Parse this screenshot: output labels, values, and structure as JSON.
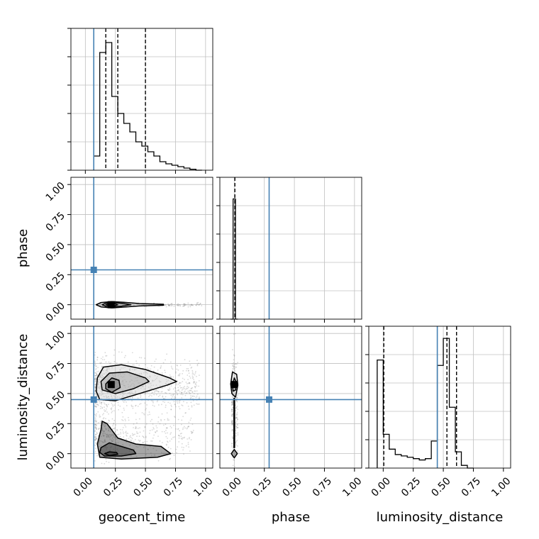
{
  "chart_data": {
    "type": "corner",
    "parameters": [
      "geocent_time",
      "phase",
      "luminosity_distance"
    ],
    "axis_labels": {
      "x": [
        "geocent_time",
        "phase",
        "luminosity_distance"
      ],
      "y": [
        "phase",
        "luminosity_distance"
      ]
    },
    "ticks": [
      0.0,
      0.25,
      0.5,
      0.75,
      1.0
    ],
    "tick_labels": [
      "0.00",
      "0.25",
      "0.50",
      "0.75",
      "1.00"
    ],
    "axis_range": [
      -0.12,
      1.06
    ],
    "grid": true,
    "colors": {
      "truth": "#4682b4",
      "hist": "#000000",
      "quantile": "#000000",
      "grid": "#c0c0c0"
    },
    "truths": {
      "geocent_time": 0.07,
      "phase": 0.29,
      "luminosity_distance": 0.45
    },
    "quantiles": {
      "geocent_time": [
        0.17,
        0.27,
        0.5
      ],
      "phase": [
        0.005
      ],
      "luminosity_distance": [
        0.005,
        0.53,
        0.61
      ]
    },
    "histograms": {
      "geocent_time": {
        "edges": [
          0.07,
          0.12,
          0.17,
          0.22,
          0.27,
          0.32,
          0.37,
          0.42,
          0.47,
          0.52,
          0.57,
          0.62,
          0.67,
          0.72,
          0.77,
          0.82,
          0.87,
          0.92,
          0.97
        ],
        "counts": [
          0.1,
          0.83,
          0.9,
          0.52,
          0.4,
          0.33,
          0.27,
          0.2,
          0.17,
          0.13,
          0.1,
          0.06,
          0.045,
          0.035,
          0.025,
          0.015,
          0.007,
          0.0
        ],
        "ymax": 1.0
      },
      "phase": {
        "edges": [
          -0.03,
          -0.01,
          0.01,
          0.03
        ],
        "counts": [
          0.0,
          1.0,
          0.0
        ],
        "ymax": 1.18
      },
      "luminosity_distance": {
        "edges": [
          -0.05,
          0.0,
          0.05,
          0.1,
          0.15,
          0.2,
          0.25,
          0.3,
          0.35,
          0.4,
          0.45,
          0.5,
          0.55,
          0.6,
          0.65,
          0.7,
          0.75
        ],
        "counts": [
          0.8,
          0.25,
          0.14,
          0.1,
          0.09,
          0.08,
          0.07,
          0.06,
          0.07,
          0.2,
          0.76,
          0.96,
          0.45,
          0.12,
          0.02,
          0.0
        ],
        "ymax": 1.05
      }
    },
    "joint_panels": [
      {
        "x": "geocent_time",
        "y": "phase",
        "points_ranges": [
          {
            "x": [
              0.12,
              0.97
            ],
            "y": [
              -0.015,
              0.015
            ],
            "n": 220
          }
        ],
        "contours": [
          [
            [
              0.09,
              0.0
            ],
            [
              0.13,
              0.018
            ],
            [
              0.22,
              0.026
            ],
            [
              0.32,
              0.02
            ],
            [
              0.45,
              0.01
            ],
            [
              0.65,
              0.004
            ],
            [
              0.65,
              -0.004
            ],
            [
              0.45,
              -0.01
            ],
            [
              0.32,
              -0.02
            ],
            [
              0.22,
              -0.026
            ],
            [
              0.13,
              -0.018
            ]
          ],
          [
            [
              0.14,
              0.0
            ],
            [
              0.17,
              0.013
            ],
            [
              0.22,
              0.018
            ],
            [
              0.3,
              0.012
            ],
            [
              0.38,
              0.0
            ],
            [
              0.3,
              -0.012
            ],
            [
              0.22,
              -0.018
            ],
            [
              0.17,
              -0.013
            ]
          ],
          [
            [
              0.17,
              0.0
            ],
            [
              0.2,
              0.009
            ],
            [
              0.24,
              0.009
            ],
            [
              0.27,
              0.0
            ],
            [
              0.24,
              -0.009
            ],
            [
              0.2,
              -0.009
            ]
          ]
        ],
        "peak": [
          0.215,
          0.0
        ]
      },
      {
        "x": "geocent_time",
        "y": "luminosity_distance",
        "points_ranges": [
          {
            "x": [
              0.08,
              0.95
            ],
            "y": [
              0.35,
              0.78
            ],
            "n": 900
          },
          {
            "x": [
              0.08,
              0.9
            ],
            "y": [
              -0.02,
              0.32
            ],
            "n": 450
          }
        ],
        "contours": [
          [
            [
              0.1,
              0.63
            ],
            [
              0.15,
              0.72
            ],
            [
              0.3,
              0.74
            ],
            [
              0.5,
              0.7
            ],
            [
              0.7,
              0.63
            ],
            [
              0.76,
              0.6
            ],
            [
              0.68,
              0.57
            ],
            [
              0.45,
              0.5
            ],
            [
              0.25,
              0.44
            ],
            [
              0.12,
              0.45
            ],
            [
              0.09,
              0.52
            ]
          ],
          [
            [
              0.13,
              0.6
            ],
            [
              0.2,
              0.67
            ],
            [
              0.35,
              0.68
            ],
            [
              0.5,
              0.63
            ],
            [
              0.53,
              0.6
            ],
            [
              0.4,
              0.54
            ],
            [
              0.25,
              0.5
            ],
            [
              0.14,
              0.53
            ]
          ],
          [
            [
              0.17,
              0.58
            ],
            [
              0.22,
              0.63
            ],
            [
              0.28,
              0.61
            ],
            [
              0.29,
              0.55
            ],
            [
              0.22,
              0.51
            ],
            [
              0.17,
              0.54
            ]
          ],
          [
            [
              0.1,
              0.08
            ],
            [
              0.13,
              0.2
            ],
            [
              0.14,
              0.27
            ],
            [
              0.18,
              0.25
            ],
            [
              0.27,
              0.13
            ],
            [
              0.42,
              0.08
            ],
            [
              0.63,
              0.06
            ],
            [
              0.71,
              0.0
            ],
            [
              0.6,
              -0.03
            ],
            [
              0.3,
              -0.045
            ],
            [
              0.12,
              -0.03
            ]
          ],
          [
            [
              0.13,
              0.05
            ],
            [
              0.2,
              0.09
            ],
            [
              0.3,
              0.06
            ],
            [
              0.4,
              0.03
            ],
            [
              0.42,
              0.0
            ],
            [
              0.3,
              -0.02
            ],
            [
              0.16,
              -0.02
            ],
            [
              0.12,
              0.01
            ]
          ],
          [
            [
              0.16,
              0.0
            ],
            [
              0.2,
              0.015
            ],
            [
              0.26,
              0.01
            ],
            [
              0.27,
              -0.005
            ],
            [
              0.2,
              -0.015
            ]
          ]
        ],
        "peak": [
          0.215,
          0.575
        ]
      },
      {
        "x": "phase",
        "y": "luminosity_distance",
        "points_ranges": [
          {
            "x": [
              -0.02,
              0.03
            ],
            "y": [
              -0.03,
              0.8
            ],
            "n": 260
          }
        ],
        "contours": [
          [
            [
              -0.03,
              0.58
            ],
            [
              -0.015,
              0.68
            ],
            [
              0.02,
              0.66
            ],
            [
              0.03,
              0.57
            ],
            [
              0.01,
              0.47
            ],
            [
              -0.02,
              0.5
            ]
          ],
          [
            [
              -0.015,
              0.57
            ],
            [
              0.0,
              0.63
            ],
            [
              0.015,
              0.6
            ],
            [
              0.012,
              0.53
            ],
            [
              -0.01,
              0.52
            ]
          ],
          [
            [
              -0.025,
              0.0
            ],
            [
              0.0,
              0.035
            ],
            [
              0.025,
              0.0
            ],
            [
              0.0,
              -0.035
            ]
          ],
          [
            [
              -0.003,
              0.46
            ],
            [
              0.003,
              0.46
            ],
            [
              0.003,
              0.05
            ],
            [
              -0.003,
              0.05
            ]
          ]
        ],
        "peak": [
          0.0,
          0.575
        ]
      }
    ]
  }
}
